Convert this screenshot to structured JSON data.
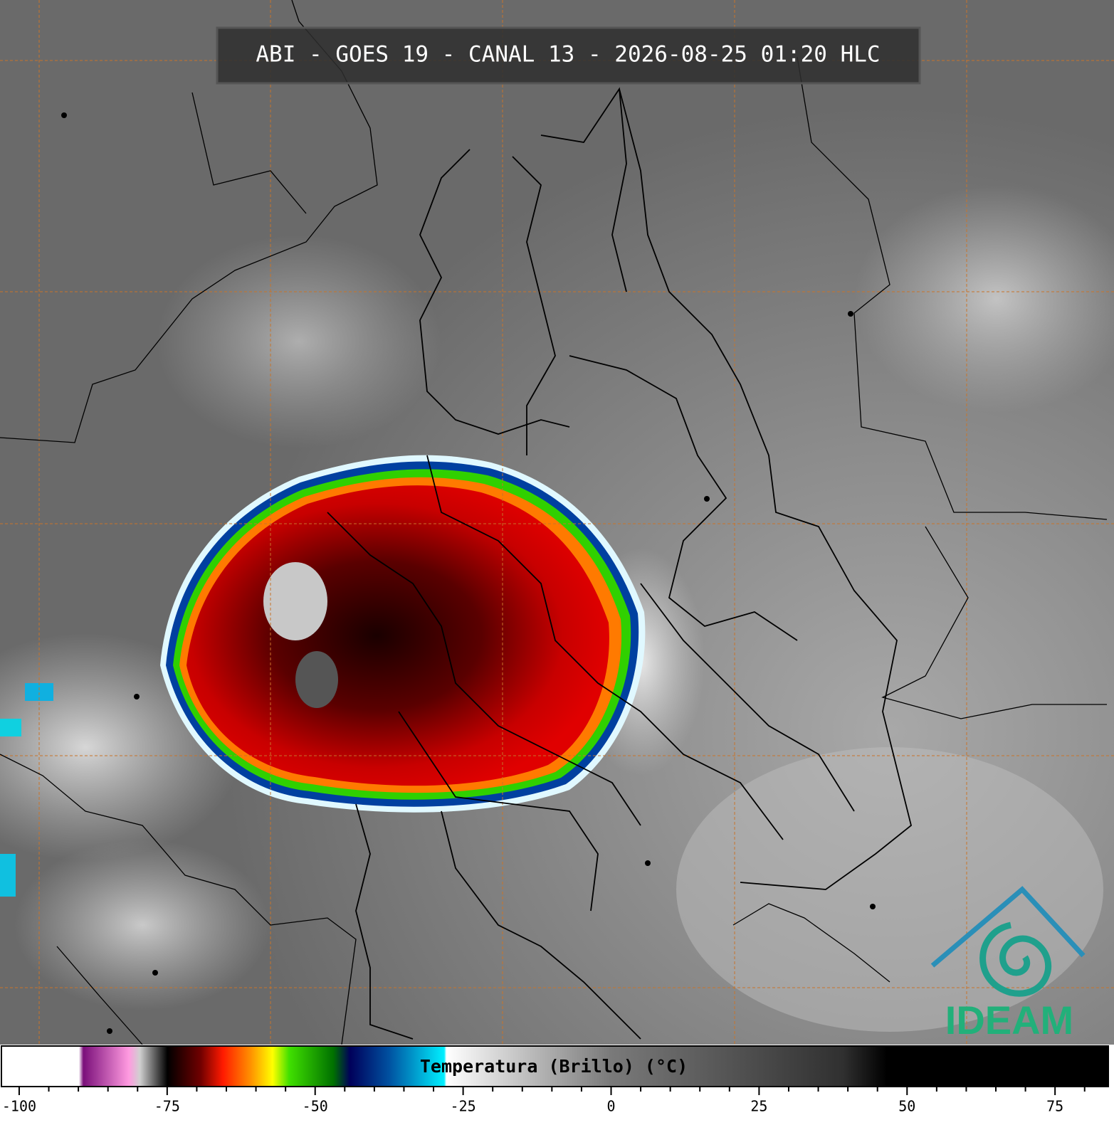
{
  "header": {
    "title": "ABI - GOES 19 - CANAL 13 - 2026-08-25 01:20 HLC"
  },
  "logo": {
    "text": "IDEAM"
  },
  "colorbar": {
    "label": "Temperatura (Brillo) (°C)",
    "lim": [
      -103,
      84
    ],
    "ticks": [
      -100,
      -75,
      -50,
      -25,
      0,
      25,
      50,
      75
    ],
    "minor_ticks": [
      -95,
      -90,
      -85,
      -80,
      -70,
      -65,
      -60,
      -55,
      -45,
      -40,
      -35,
      -30,
      -20,
      -15,
      -10,
      -5,
      5,
      10,
      15,
      20,
      30,
      35,
      40,
      45,
      55,
      60,
      65,
      70,
      80
    ]
  }
}
